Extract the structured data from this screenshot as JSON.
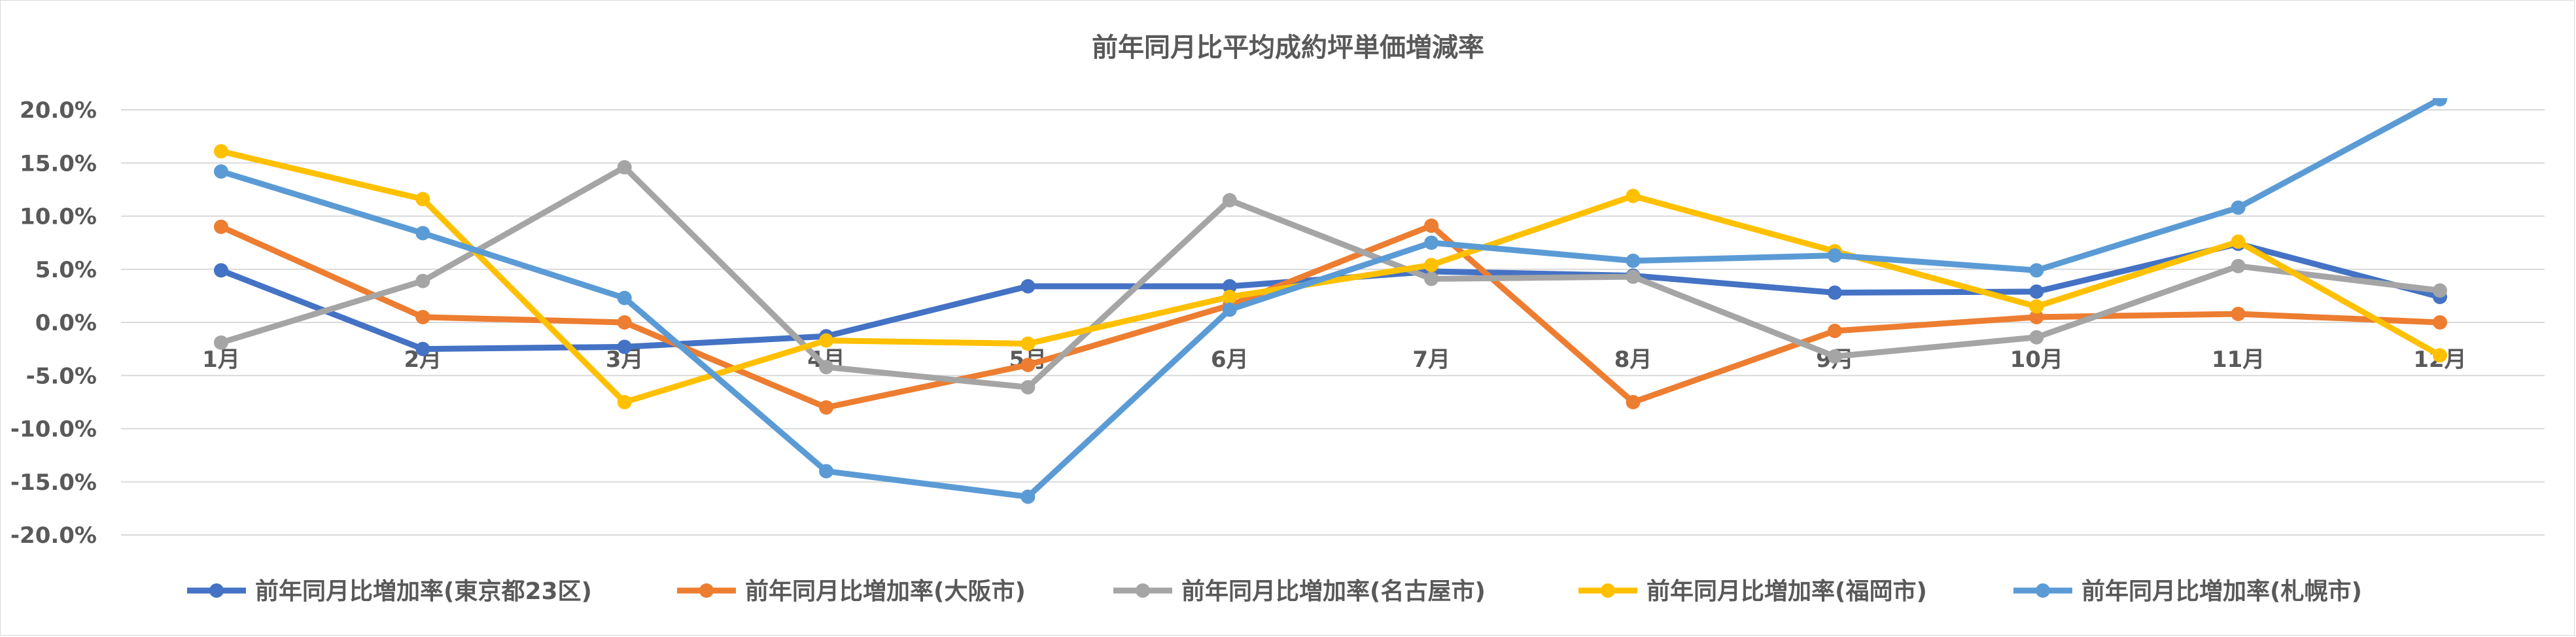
{
  "chart_data": {
    "type": "line",
    "title": "前年同月比平均成約坪単価増減率",
    "categories": [
      "1月",
      "2月",
      "3月",
      "4月",
      "5月",
      "6月",
      "7月",
      "8月",
      "9月",
      "10月",
      "11月",
      "12月"
    ],
    "y_tick_labels": [
      "20.0%",
      "15.0%",
      "10.0%",
      "5.0%",
      "0.0%",
      "-5.0%",
      "-10.0%",
      "-15.0%",
      "-20.0%"
    ],
    "ylim": [
      -20,
      20
    ],
    "y_unit": "%",
    "grid": true,
    "legend_position": "bottom",
    "series": [
      {
        "name": "前年同月比増加率(東京都23区)",
        "color": "#4472C4",
        "values": [
          4.9,
          -2.5,
          -2.3,
          -1.3,
          3.4,
          3.4,
          4.8,
          4.4,
          2.8,
          2.9,
          7.4,
          2.4
        ]
      },
      {
        "name": "前年同月比増加率(大阪市)",
        "color": "#ED7D31",
        "values": [
          9.0,
          0.5,
          0.0,
          -8.0,
          -4.0,
          1.6,
          9.1,
          -7.5,
          -0.8,
          0.5,
          0.8,
          0.0
        ]
      },
      {
        "name": "前年同月比増加率(名古屋市)",
        "color": "#A5A5A5",
        "values": [
          -1.9,
          3.9,
          14.6,
          -4.2,
          -6.1,
          11.5,
          4.1,
          4.3,
          -3.2,
          -1.4,
          5.3,
          3.0
        ]
      },
      {
        "name": "前年同月比増加率(福岡市)",
        "color": "#FFC000",
        "values": [
          16.1,
          11.6,
          -7.5,
          -1.7,
          -2.0,
          2.4,
          5.4,
          11.9,
          6.7,
          1.5,
          7.6,
          -3.1
        ]
      },
      {
        "name": "前年同月比増加率(札幌市)",
        "color": "#5B9BD5",
        "values": [
          14.2,
          8.4,
          2.3,
          -14.0,
          -16.4,
          1.2,
          7.5,
          5.8,
          6.3,
          4.9,
          10.8,
          21.0
        ]
      }
    ]
  }
}
